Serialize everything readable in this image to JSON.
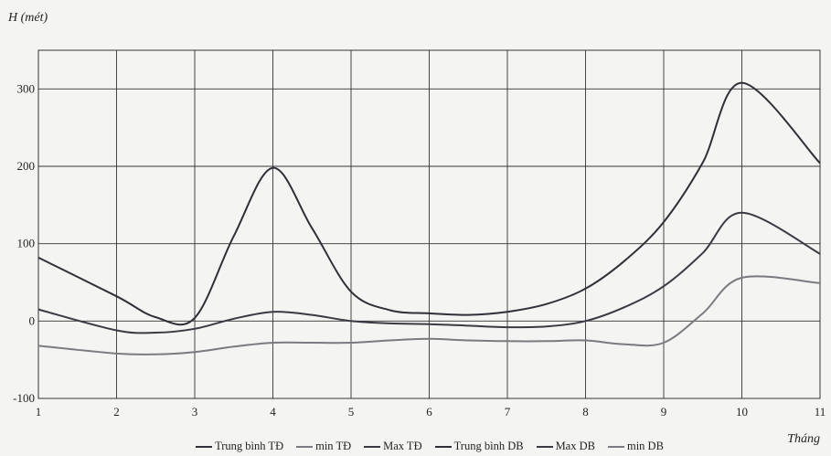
{
  "chart_data": {
    "type": "line",
    "ylabel": "H (mét)",
    "xlabel": "Tháng",
    "xlim": [
      1,
      11
    ],
    "ylim": [
      -100,
      350
    ],
    "x_ticks": [
      1,
      2,
      3,
      4,
      5,
      6,
      7,
      8,
      9,
      10,
      11
    ],
    "y_ticks": [
      -100,
      0,
      100,
      200,
      300
    ],
    "grid": true,
    "legend_position": "bottom",
    "series": [
      {
        "name": "Trung bình TĐ",
        "color": "#2f2f38",
        "points": [
          [
            1,
            82
          ],
          [
            2,
            32
          ],
          [
            2.5,
            5
          ],
          [
            3,
            4
          ],
          [
            3.5,
            110
          ],
          [
            4,
            198
          ],
          [
            4.5,
            120
          ],
          [
            5,
            38
          ],
          [
            5.5,
            14
          ],
          [
            6,
            10
          ],
          [
            6.5,
            8
          ],
          [
            7,
            12
          ],
          [
            7.5,
            22
          ],
          [
            8,
            42
          ],
          [
            8.5,
            78
          ],
          [
            9,
            128
          ],
          [
            9.5,
            205
          ],
          [
            10,
            308
          ],
          [
            11,
            204
          ]
        ]
      },
      {
        "name": "Trung bình DB",
        "color": "#3a3a44",
        "points": [
          [
            1,
            15
          ],
          [
            2,
            -12
          ],
          [
            2.5,
            -15
          ],
          [
            3,
            -10
          ],
          [
            3.5,
            3
          ],
          [
            4,
            12
          ],
          [
            4.5,
            8
          ],
          [
            5,
            0
          ],
          [
            5.5,
            -3
          ],
          [
            6,
            -4
          ],
          [
            6.5,
            -6
          ],
          [
            7,
            -8
          ],
          [
            7.5,
            -7
          ],
          [
            8,
            0
          ],
          [
            8.5,
            18
          ],
          [
            9,
            45
          ],
          [
            9.5,
            88
          ],
          [
            10,
            140
          ],
          [
            11,
            87
          ]
        ]
      },
      {
        "name": "min DB",
        "color": "#7a7a80",
        "points": [
          [
            1,
            -32
          ],
          [
            2,
            -42
          ],
          [
            2.5,
            -43
          ],
          [
            3,
            -40
          ],
          [
            3.5,
            -33
          ],
          [
            4,
            -28
          ],
          [
            4.5,
            -28
          ],
          [
            5,
            -28
          ],
          [
            5.5,
            -25
          ],
          [
            6,
            -23
          ],
          [
            6.5,
            -25
          ],
          [
            7,
            -26
          ],
          [
            7.5,
            -26
          ],
          [
            8,
            -25
          ],
          [
            8.5,
            -30
          ],
          [
            9,
            -28
          ],
          [
            9.5,
            10
          ],
          [
            10,
            56
          ],
          [
            11,
            49
          ]
        ]
      }
    ]
  },
  "legend": [
    {
      "label": "Trung bình TĐ",
      "color": "#2f2f38"
    },
    {
      "label": "min TĐ",
      "color": "#7a7a80"
    },
    {
      "label": "Max TĐ",
      "color": "#3a3a44"
    },
    {
      "label": "Trung bình DB",
      "color": "#2f2f38"
    },
    {
      "label": "Max DB",
      "color": "#3a3a44"
    },
    {
      "label": "min DB",
      "color": "#7a7a80"
    }
  ]
}
